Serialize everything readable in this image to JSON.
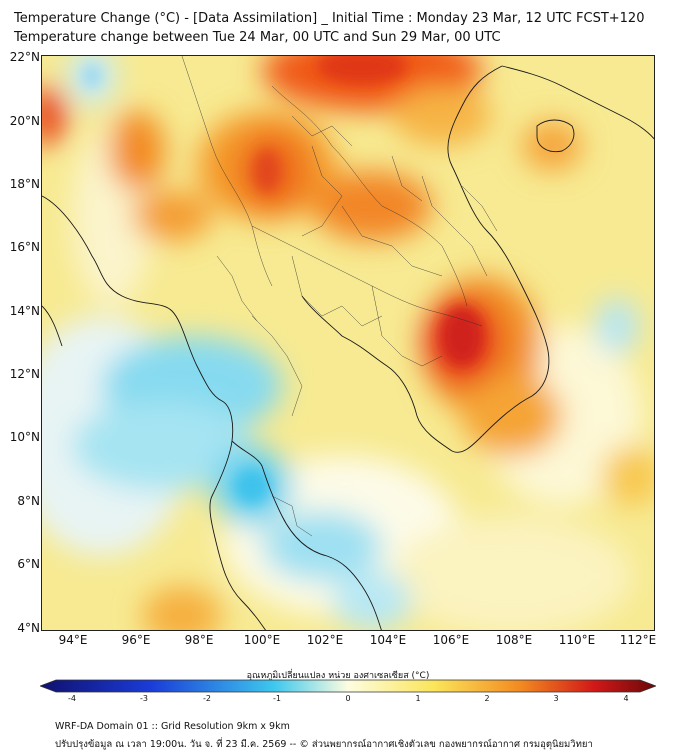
{
  "title": {
    "line1": "Temperature Change (°C) - [Data Assimilation] _ Initial Time : Monday 23 Mar, 12 UTC FCST+120",
    "line2": "Temperature change between Tue 24 Mar, 00 UTC and Sun 29 Mar, 00 UTC"
  },
  "map": {
    "lat_labels": [
      "22°N",
      "20°N",
      "18°N",
      "16°N",
      "14°N",
      "12°N",
      "10°N",
      "8°N",
      "6°N",
      "4°N"
    ],
    "lon_labels": [
      "94°E",
      "96°E",
      "98°E",
      "100°E",
      "102°E",
      "104°E",
      "106°E",
      "108°E",
      "110°E",
      "112°E"
    ],
    "extent": {
      "lon_min": 93.0,
      "lon_max": 112.5,
      "lat_min": 4.0,
      "lat_max": 22.3
    }
  },
  "colorbar": {
    "title": "อุณหภูมิเปลี่ยนแปลง หน่วย องศาเซลเซียส (°C)",
    "ticks": [
      "-4",
      "-3",
      "-2",
      "-1",
      "0",
      "1",
      "2",
      "3",
      "4"
    ],
    "min": -4,
    "max": 4,
    "colors": {
      "dark_blue": "#10106e",
      "blue": "#1a3cd8",
      "cyan": "#3ec8ee",
      "light": "#fdfde0",
      "yellow": "#fbe55a",
      "orange": "#f28a20",
      "red": "#d11818",
      "dark_red": "#6a0808"
    }
  },
  "footer": {
    "line1": "WRF-DA Domain 01 :: Grid Resolution 9km x 9km",
    "line2": "ปรับปรุงข้อมูล ณ เวลา 19:00น. วัน จ. ที่ 23 มี.ค. 2569 -- © ส่วนพยากรณ์อากาศเชิงตัวเลข กองพยากรณ์อากาศ กรมอุตุนิยมวิทยา"
  }
}
